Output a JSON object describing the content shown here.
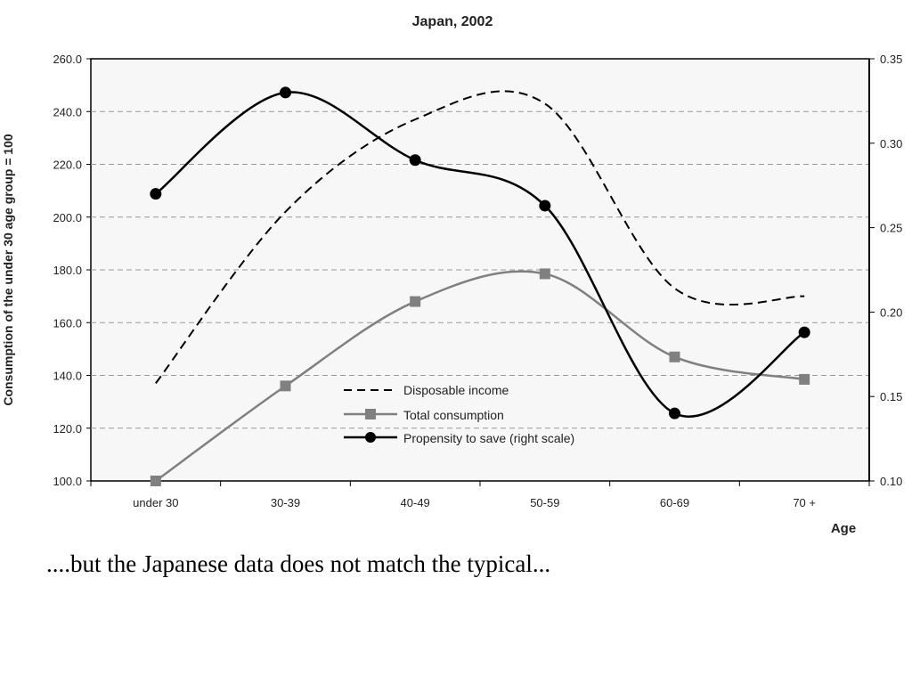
{
  "caption": "....but the Japanese data does not match the typical...",
  "chart_data": {
    "type": "line",
    "title": "Japan, 2002",
    "xlabel": "Age",
    "ylabel": "Consumption of the under 30 age group = 100",
    "categories": [
      "under 30",
      "30-39",
      "40-49",
      "50-59",
      "60-69",
      "70 +"
    ],
    "ylim": [
      100,
      260
    ],
    "y_ticks": [
      "100.0",
      "120.0",
      "140.0",
      "160.0",
      "180.0",
      "200.0",
      "220.0",
      "240.0",
      "260.0"
    ],
    "y2lim": [
      0.1,
      0.35
    ],
    "y2_ticks": [
      "0.10",
      "0.15",
      "0.20",
      "0.25",
      "0.30",
      "0.35"
    ],
    "grid": true,
    "legend_position": "bottom-center",
    "series": [
      {
        "name": "Disposable income",
        "values": [
          137,
          202,
          237,
          243,
          173,
          170
        ],
        "axis": "left",
        "style": "dashed",
        "color": "#000000",
        "marker": "none"
      },
      {
        "name": "Total consumption",
        "values": [
          100,
          136,
          168,
          178.5,
          147,
          138.5
        ],
        "axis": "left",
        "style": "solid",
        "color": "#808080",
        "marker": "square"
      },
      {
        "name": "Propensity to save (right scale)",
        "values": [
          0.27,
          0.33,
          0.29,
          0.263,
          0.14,
          0.188
        ],
        "axis": "right",
        "style": "solid",
        "color": "#000000",
        "marker": "circle"
      }
    ]
  }
}
